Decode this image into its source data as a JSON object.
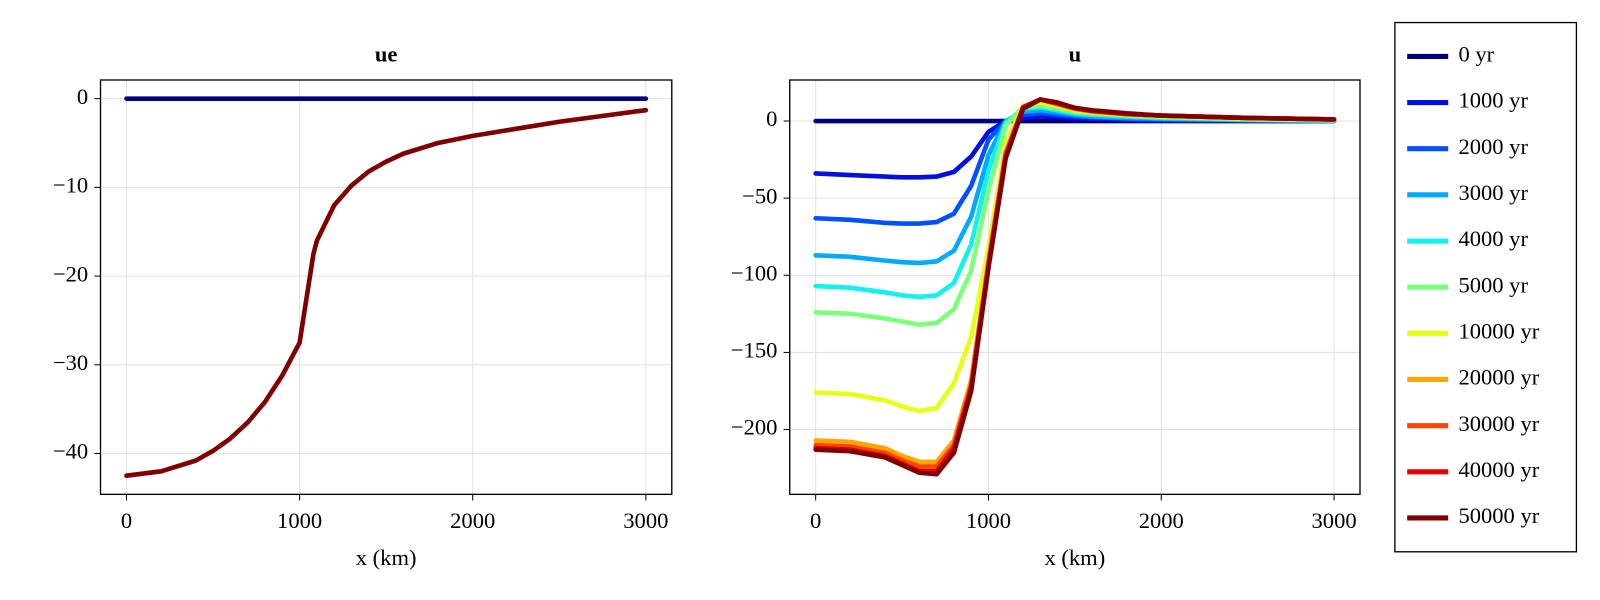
{
  "chart_data": [
    {
      "type": "line",
      "title": "ue",
      "xlabel": "x (km)",
      "x": [
        0,
        200,
        400,
        500,
        600,
        700,
        800,
        900,
        1000,
        1080,
        1100,
        1200,
        1300,
        1400,
        1500,
        1600,
        1800,
        2000,
        2500,
        3000
      ],
      "series": [
        {
          "color": "#00007f",
          "values": [
            0,
            0,
            0,
            0,
            0,
            0,
            0,
            0,
            0,
            0,
            0,
            0,
            0,
            0,
            0,
            0,
            0,
            0,
            0,
            0
          ]
        },
        {
          "color": "#7f0000",
          "values": [
            -42.5,
            -42.0,
            -40.8,
            -39.7,
            -38.3,
            -36.5,
            -34.2,
            -31.2,
            -27.5,
            -17.5,
            -16,
            -12,
            -9.8,
            -8.2,
            -7.1,
            -6.2,
            -5.0,
            -4.2,
            -2.6,
            -1.3
          ]
        }
      ],
      "xlim": [
        -150,
        3150
      ],
      "ylim": [
        -44.6,
        2.1
      ],
      "xticks": [
        0,
        1000,
        2000,
        3000
      ],
      "yticks": [
        0,
        {
          "value": -10,
          "label": "−10"
        },
        {
          "value": -20,
          "label": "−20"
        },
        {
          "value": -30,
          "label": "−30"
        },
        {
          "value": -40,
          "label": "−40"
        }
      ],
      "grid": true
    },
    {
      "type": "line",
      "title": "u",
      "xlabel": "x (km)",
      "legend": "outside right",
      "x": [
        0,
        200,
        400,
        500,
        600,
        700,
        800,
        900,
        1000,
        1100,
        1200,
        1300,
        1400,
        1500,
        1600,
        1800,
        2000,
        2500,
        3000
      ],
      "series": [
        {
          "name": "0 yr",
          "color": "#00007f",
          "values": [
            0,
            0,
            0,
            0,
            0,
            0,
            0,
            0,
            0,
            0,
            0,
            0,
            0,
            0,
            0,
            0,
            0,
            0,
            0
          ]
        },
        {
          "name": "1000 yr",
          "color": "#0010e0",
          "values": [
            -34,
            -35,
            -36,
            -36.5,
            -36.5,
            -36,
            -33,
            -23,
            -7,
            0,
            2,
            3,
            2.5,
            2,
            1.5,
            1,
            0.5,
            0.2,
            0
          ]
        },
        {
          "name": "2000 yr",
          "color": "#0050ff",
          "values": [
            -63,
            -64,
            -66,
            -66.5,
            -66.5,
            -65.5,
            -60,
            -42,
            -12,
            0,
            4,
            5,
            4,
            3,
            2.5,
            1.5,
            1,
            0.5,
            0
          ]
        },
        {
          "name": "3000 yr",
          "color": "#00aaff",
          "values": [
            -87,
            -88,
            -90.5,
            -91.5,
            -92,
            -91,
            -84,
            -62,
            -22,
            0,
            6,
            7,
            5.5,
            4,
            3,
            2,
            1.5,
            0.7,
            0
          ]
        },
        {
          "name": "4000 yr",
          "color": "#12f0f0",
          "values": [
            -107,
            -108,
            -111,
            -113,
            -114,
            -113,
            -105,
            -80,
            -32,
            -1,
            8,
            9,
            7,
            5,
            4,
            3,
            2,
            1,
            0.5
          ]
        },
        {
          "name": "5000 yr",
          "color": "#7dff7a",
          "values": [
            -124,
            -125,
            -128,
            -130,
            -132,
            -131,
            -122,
            -97,
            -45,
            -3,
            9,
            10,
            8,
            6,
            5,
            3.5,
            2.5,
            1.2,
            0.5
          ]
        },
        {
          "name": "10000 yr",
          "color": "#e6ff14",
          "values": [
            -176,
            -177,
            -181,
            -185,
            -188,
            -186,
            -170,
            -140,
            -82,
            -14,
            10,
            12,
            10,
            7,
            5.5,
            4,
            3,
            1.5,
            0.7
          ]
        },
        {
          "name": "20000 yr",
          "color": "#ffa500",
          "values": [
            -207,
            -208,
            -212,
            -217,
            -221,
            -221,
            -207,
            -168,
            -90,
            -20,
            9,
            14,
            11,
            8,
            6,
            4.5,
            3.5,
            2,
            1
          ]
        },
        {
          "name": "30000 yr",
          "color": "#ff4500",
          "values": [
            -210,
            -211,
            -215,
            -220,
            -224,
            -224,
            -210,
            -171,
            -92,
            -21,
            9,
            14,
            11,
            8,
            6.5,
            4.5,
            3.5,
            2,
            1
          ]
        },
        {
          "name": "40000 yr",
          "color": "#e60000",
          "values": [
            -212,
            -213,
            -217,
            -222,
            -227,
            -227,
            -212,
            -173,
            -94,
            -23,
            9,
            14,
            11.5,
            8.5,
            6.5,
            4.5,
            3.5,
            2,
            1
          ]
        },
        {
          "name": "50000 yr",
          "color": "#7f0000",
          "values": [
            -213,
            -214,
            -218,
            -223,
            -228,
            -229,
            -215,
            -175,
            -95,
            -24,
            8,
            14,
            12,
            8.5,
            7,
            5,
            3.5,
            2,
            1
          ]
        }
      ],
      "xlim": [
        -150,
        3150
      ],
      "ylim": [
        -242,
        26.6
      ],
      "xticks": [
        0,
        1000,
        2000,
        3000
      ],
      "yticks": [
        0,
        {
          "value": -50,
          "label": "−50"
        },
        {
          "value": -100,
          "label": "−100"
        },
        {
          "value": -150,
          "label": "−150"
        },
        {
          "value": -200,
          "label": "−200"
        }
      ],
      "grid": true
    }
  ]
}
